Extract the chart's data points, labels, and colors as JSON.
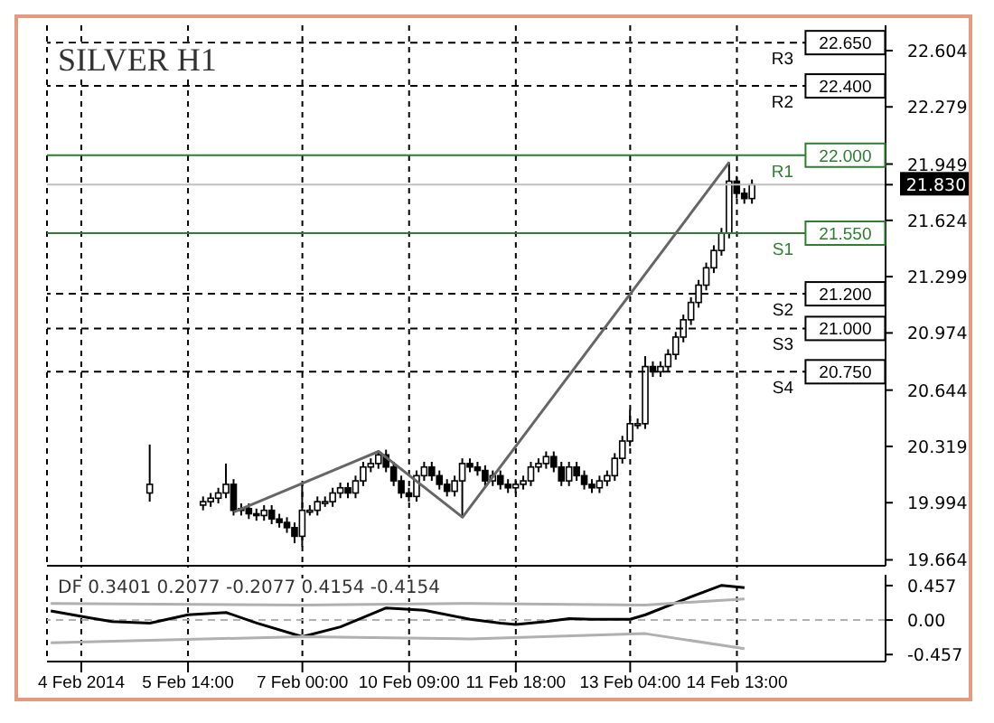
{
  "chart_data": [
    {
      "type": "candlestick",
      "title": "SILVER H1",
      "categories": [
        null,
        null,
        null,
        null,
        null,
        null,
        null,
        null,
        null,
        null,
        null,
        null,
        null,
        null,
        null,
        null,
        null,
        null,
        null,
        null,
        null,
        null,
        null,
        null,
        null,
        null,
        null,
        null,
        null,
        null,
        null,
        null,
        null,
        null,
        null,
        null,
        null,
        null,
        null,
        null,
        null,
        null,
        null,
        null,
        null,
        null,
        null,
        null,
        null,
        null,
        null,
        null,
        null,
        null,
        null,
        null,
        null,
        null,
        null,
        null,
        null,
        null,
        null,
        null,
        null,
        null,
        null,
        null,
        null,
        null,
        null,
        null,
        null,
        null,
        null,
        null,
        null,
        null,
        null,
        null,
        null,
        null,
        null,
        null,
        null,
        null,
        null,
        null,
        null,
        null,
        null,
        null,
        null,
        null,
        null,
        null,
        null,
        null,
        null,
        null,
        null,
        null,
        null,
        null,
        null,
        null,
        null,
        null,
        null,
        null
      ],
      "ohlc": [
        null,
        null,
        null,
        null,
        null,
        null,
        null,
        null,
        null,
        null,
        null,
        null,
        null,
        [
          20.05,
          20.33,
          20.0,
          20.1
        ],
        null,
        null,
        null,
        null,
        null,
        null,
        [
          19.98,
          20.03,
          19.95,
          20.0
        ],
        [
          20.0,
          20.05,
          19.97,
          20.02
        ],
        [
          20.02,
          20.08,
          19.99,
          20.05
        ],
        [
          20.05,
          20.22,
          20.02,
          20.1
        ],
        [
          20.1,
          20.13,
          19.92,
          19.95
        ],
        [
          19.95,
          19.99,
          19.92,
          19.96
        ],
        [
          19.96,
          19.99,
          19.9,
          19.93
        ],
        [
          19.93,
          19.96,
          19.89,
          19.92
        ],
        [
          19.92,
          19.98,
          19.89,
          19.95
        ],
        [
          19.95,
          19.98,
          19.87,
          19.9
        ],
        [
          19.9,
          19.93,
          19.85,
          19.88
        ],
        [
          19.88,
          19.91,
          19.82,
          19.85
        ],
        [
          19.85,
          19.88,
          19.76,
          19.8
        ],
        [
          19.8,
          20.1,
          19.74,
          19.95
        ],
        [
          19.95,
          19.98,
          19.92,
          19.95
        ],
        [
          19.95,
          20.03,
          19.92,
          20.0
        ],
        [
          20.0,
          20.03,
          19.97,
          20.0
        ],
        [
          20.0,
          20.08,
          19.97,
          20.05
        ],
        [
          20.05,
          20.11,
          20.02,
          20.08
        ],
        [
          20.08,
          20.11,
          20.02,
          20.05
        ],
        [
          20.05,
          20.15,
          20.02,
          20.12
        ],
        [
          20.12,
          20.23,
          20.09,
          20.2
        ],
        [
          20.2,
          20.25,
          20.17,
          20.22
        ],
        [
          20.22,
          20.29,
          20.19,
          20.27
        ],
        [
          20.27,
          20.3,
          20.17,
          20.2
        ],
        [
          20.2,
          20.23,
          20.09,
          20.12
        ],
        [
          20.12,
          20.15,
          20.02,
          20.05
        ],
        [
          20.05,
          20.08,
          20.0,
          20.03
        ],
        [
          20.03,
          20.18,
          20.0,
          20.15
        ],
        [
          20.15,
          20.23,
          20.12,
          20.2
        ],
        [
          20.2,
          20.23,
          20.12,
          20.15
        ],
        [
          20.15,
          20.18,
          20.07,
          20.1
        ],
        [
          20.1,
          20.13,
          20.03,
          20.06
        ],
        [
          20.06,
          20.15,
          20.03,
          20.12
        ],
        [
          20.12,
          20.25,
          19.91,
          20.22
        ],
        [
          20.22,
          20.25,
          20.17,
          20.2
        ],
        [
          20.2,
          20.23,
          20.15,
          20.18
        ],
        [
          20.18,
          20.21,
          20.09,
          20.12
        ],
        [
          20.12,
          20.18,
          20.09,
          20.15
        ],
        [
          20.15,
          20.18,
          20.07,
          20.1
        ],
        [
          20.1,
          20.13,
          20.05,
          20.08
        ],
        [
          20.08,
          20.13,
          20.05,
          20.1
        ],
        [
          20.1,
          20.15,
          20.07,
          20.12
        ],
        [
          20.12,
          20.23,
          20.09,
          20.2
        ],
        [
          20.2,
          20.25,
          20.17,
          20.22
        ],
        [
          20.22,
          20.29,
          20.19,
          20.26
        ],
        [
          20.26,
          20.29,
          20.17,
          20.2
        ],
        [
          20.2,
          20.23,
          20.09,
          20.12
        ],
        [
          20.12,
          20.23,
          20.09,
          20.2
        ],
        [
          20.2,
          20.23,
          20.12,
          20.15
        ],
        [
          20.15,
          20.18,
          20.07,
          20.1
        ],
        [
          20.1,
          20.13,
          20.05,
          20.08
        ],
        [
          20.08,
          20.15,
          20.05,
          20.12
        ],
        [
          20.12,
          20.18,
          20.09,
          20.15
        ],
        [
          20.15,
          20.28,
          20.12,
          20.25
        ],
        [
          20.25,
          20.38,
          20.22,
          20.35
        ],
        [
          20.35,
          20.53,
          20.32,
          20.45
        ],
        [
          20.45,
          20.48,
          20.42,
          20.45
        ],
        [
          20.45,
          20.84,
          20.42,
          20.78
        ],
        [
          20.78,
          20.81,
          20.72,
          20.75
        ],
        [
          20.75,
          20.81,
          20.72,
          20.78
        ],
        [
          20.78,
          20.88,
          20.75,
          20.85
        ],
        [
          20.85,
          20.98,
          20.82,
          20.95
        ],
        [
          20.95,
          21.08,
          20.92,
          21.05
        ],
        [
          21.05,
          21.18,
          21.02,
          21.15
        ],
        [
          21.15,
          21.28,
          21.12,
          21.25
        ],
        [
          21.25,
          21.38,
          21.22,
          21.35
        ],
        [
          21.35,
          21.48,
          21.32,
          21.45
        ],
        [
          21.45,
          21.58,
          21.42,
          21.55
        ],
        [
          21.55,
          21.96,
          21.52,
          21.85
        ],
        [
          21.85,
          21.88,
          21.75,
          21.78
        ],
        [
          21.78,
          21.81,
          21.72,
          21.75
        ],
        [
          21.75,
          21.86,
          21.72,
          21.83
        ],
        null,
        null,
        null,
        null,
        null,
        null,
        null,
        null,
        null,
        null,
        null,
        null,
        null,
        null,
        null,
        null,
        null
      ],
      "color": "#000000",
      "series": [
        {
          "type": "line",
          "color": "#666666",
          "values": [
            null,
            null,
            null,
            null,
            null,
            null,
            null,
            null,
            null,
            null,
            null,
            null,
            null,
            null,
            null,
            null,
            null,
            null,
            null,
            null,
            null,
            null,
            null,
            null,
            19.94,
            null,
            null,
            null,
            null,
            null,
            null,
            null,
            null,
            null,
            null,
            null,
            null,
            null,
            null,
            null,
            null,
            null,
            null,
            20.29,
            null,
            null,
            null,
            null,
            null,
            null,
            null,
            null,
            null,
            null,
            19.91,
            null,
            null,
            null,
            null,
            null,
            null,
            null,
            null,
            null,
            null,
            null,
            null,
            null,
            null,
            null,
            null,
            null,
            null,
            null,
            null,
            null,
            null,
            null,
            null,
            null,
            null,
            null,
            null,
            null,
            null,
            null,
            null,
            null,
            null,
            21.96,
            null,
            null,
            null,
            null,
            null,
            null,
            null,
            null,
            null,
            null,
            null,
            null,
            null,
            null,
            null,
            null,
            null,
            null,
            null,
            null
          ]
        }
      ],
      "ylim": [
        19.63,
        22.75
      ],
      "yticks": [
        19.664,
        19.994,
        20.319,
        20.644,
        20.974,
        21.299,
        21.624,
        {
          "value": 21.83,
          "label": "21.830"
        },
        21.949,
        22.279,
        22.604
      ],
      "ref_lines": [
        {
          "axis": "y",
          "value": 22.65,
          "label": "R3",
          "color": "#000000",
          "line_style": "dashed"
        },
        {
          "axis": "y",
          "value": 22.4,
          "label": "R2",
          "color": "#000000",
          "line_style": "dashed"
        },
        {
          "axis": "y",
          "value": 22.0,
          "label": "R1",
          "color": "#2e7d32",
          "line_style": "solid"
        },
        {
          "axis": "y",
          "value": 21.55,
          "label": "S1",
          "color": "#2e7d32",
          "line_style": "solid"
        },
        {
          "axis": "y",
          "value": 21.2,
          "label": "S2",
          "color": "#000000",
          "line_style": "dashed"
        },
        {
          "axis": "y",
          "value": 21.0,
          "label": "S3",
          "color": "#000000",
          "line_style": "dashed"
        },
        {
          "axis": "y",
          "value": 20.75,
          "label": "S4",
          "color": "#000000",
          "line_style": "dashed"
        },
        {
          "axis": "y",
          "value": 21.83,
          "color": "#c0c0c0",
          "line_style": "solid"
        }
      ],
      "annotations": [
        {
          "text": "22.650",
          "y": 22.65
        },
        {
          "text": "22.400",
          "y": 22.4
        },
        {
          "text": "22.000",
          "y": 22.0
        },
        {
          "text": "21.550",
          "y": 21.55
        },
        {
          "text": "21.200",
          "y": 21.2
        },
        {
          "text": "21.000",
          "y": 21.0
        },
        {
          "text": "20.750",
          "y": 20.75
        }
      ],
      "grid": "x",
      "tick_labels": "y"
    },
    {
      "type": "line",
      "title": "DF 0.3401 0.2077 -0.2077 0.4154 -0.4154",
      "categories": [
        null,
        null,
        null,
        null,
        "4 Feb 2014",
        null,
        null,
        null,
        null,
        null,
        null,
        null,
        null,
        null,
        null,
        null,
        null,
        null,
        "5 Feb 14:00",
        null,
        null,
        null,
        null,
        null,
        null,
        null,
        null,
        null,
        null,
        null,
        null,
        null,
        null,
        "7 Feb 00:00",
        null,
        null,
        null,
        null,
        null,
        null,
        null,
        null,
        null,
        null,
        null,
        null,
        null,
        "10 Feb 09:00",
        null,
        null,
        null,
        null,
        null,
        null,
        null,
        null,
        null,
        null,
        null,
        null,
        null,
        "11 Feb 18:00",
        null,
        null,
        null,
        null,
        null,
        null,
        null,
        null,
        null,
        null,
        null,
        null,
        null,
        null,
        "13 Feb 04:00",
        null,
        null,
        null,
        null,
        null,
        null,
        null,
        null,
        null,
        null,
        null,
        null,
        null,
        "14 Feb 13:00",
        null,
        null,
        null,
        null,
        null,
        null,
        null,
        null,
        null,
        null,
        null,
        null,
        null,
        null,
        null,
        null,
        null,
        null,
        null
      ],
      "series": [
        {
          "color": "#000000",
          "values": [
            0.12,
            null,
            null,
            null,
            null,
            0.03,
            null,
            null,
            -0.02,
            null,
            null,
            null,
            null,
            -0.04,
            null,
            null,
            null,
            null,
            0.07,
            null,
            null,
            null,
            null,
            0.1,
            null,
            null,
            null,
            -0.04,
            null,
            null,
            null,
            null,
            null,
            -0.22,
            null,
            null,
            null,
            null,
            -0.09,
            null,
            null,
            null,
            null,
            null,
            0.16,
            null,
            null,
            null,
            null,
            0.13,
            null,
            null,
            null,
            null,
            null,
            0.01,
            null,
            null,
            null,
            -0.04,
            null,
            -0.06,
            null,
            null,
            null,
            -0.02,
            null,
            null,
            0.02,
            null,
            null,
            0.01,
            null,
            null,
            null,
            null,
            0.01,
            null,
            0.07,
            null,
            null,
            null,
            null,
            0.27,
            null,
            null,
            null,
            null,
            0.46,
            null,
            null,
            0.43,
            null,
            null,
            null,
            null,
            null,
            null,
            null,
            null,
            null,
            null,
            null,
            null,
            null,
            null,
            null,
            null,
            null,
            null
          ]
        },
        {
          "color": "#b0b0b0",
          "values": [
            0.22,
            null,
            null,
            null,
            null,
            null,
            null,
            null,
            null,
            null,
            null,
            null,
            null,
            null,
            null,
            null,
            null,
            null,
            null,
            null,
            null,
            null,
            null,
            null,
            null,
            null,
            null,
            null,
            null,
            null,
            null,
            null,
            null,
            0.2,
            null,
            null,
            null,
            null,
            null,
            null,
            null,
            null,
            null,
            null,
            null,
            null,
            null,
            null,
            null,
            null,
            null,
            null,
            null,
            null,
            null,
            0.22,
            null,
            null,
            null,
            null,
            null,
            null,
            null,
            null,
            null,
            null,
            null,
            null,
            null,
            null,
            null,
            null,
            null,
            null,
            null,
            null,
            null,
            null,
            0.2,
            null,
            null,
            null,
            null,
            null,
            null,
            null,
            null,
            null,
            null,
            null,
            null,
            0.28,
            null,
            null,
            null,
            null,
            null,
            null,
            null,
            null,
            null,
            null,
            null,
            null,
            null,
            null,
            null,
            null,
            null,
            null
          ]
        },
        {
          "color": "#b0b0b0",
          "values": [
            -0.3,
            null,
            null,
            null,
            null,
            null,
            null,
            null,
            null,
            null,
            null,
            null,
            null,
            null,
            null,
            null,
            null,
            null,
            null,
            null,
            null,
            null,
            null,
            null,
            null,
            null,
            null,
            null,
            null,
            null,
            null,
            null,
            null,
            -0.22,
            null,
            null,
            null,
            null,
            null,
            null,
            null,
            null,
            null,
            null,
            null,
            null,
            null,
            null,
            null,
            null,
            null,
            null,
            null,
            null,
            null,
            -0.25,
            null,
            null,
            null,
            null,
            null,
            null,
            null,
            null,
            null,
            null,
            null,
            null,
            null,
            null,
            null,
            null,
            null,
            null,
            null,
            null,
            null,
            null,
            -0.18,
            null,
            null,
            null,
            null,
            null,
            null,
            null,
            null,
            null,
            null,
            null,
            null,
            -0.38,
            null,
            null,
            null,
            null,
            null,
            null,
            null,
            null,
            null,
            null,
            null,
            null,
            null,
            null,
            null,
            null,
            null,
            null
          ]
        }
      ],
      "ylim": [
        -0.55,
        0.6
      ],
      "yticks": [
        -0.457,
        {
          "value": 0,
          "label": "0.00"
        },
        0.457
      ],
      "ref_lines": [
        {
          "axis": "y",
          "value": 0,
          "color": "#b0b0b0",
          "line_style": "dashed"
        }
      ],
      "grid": "x"
    }
  ]
}
